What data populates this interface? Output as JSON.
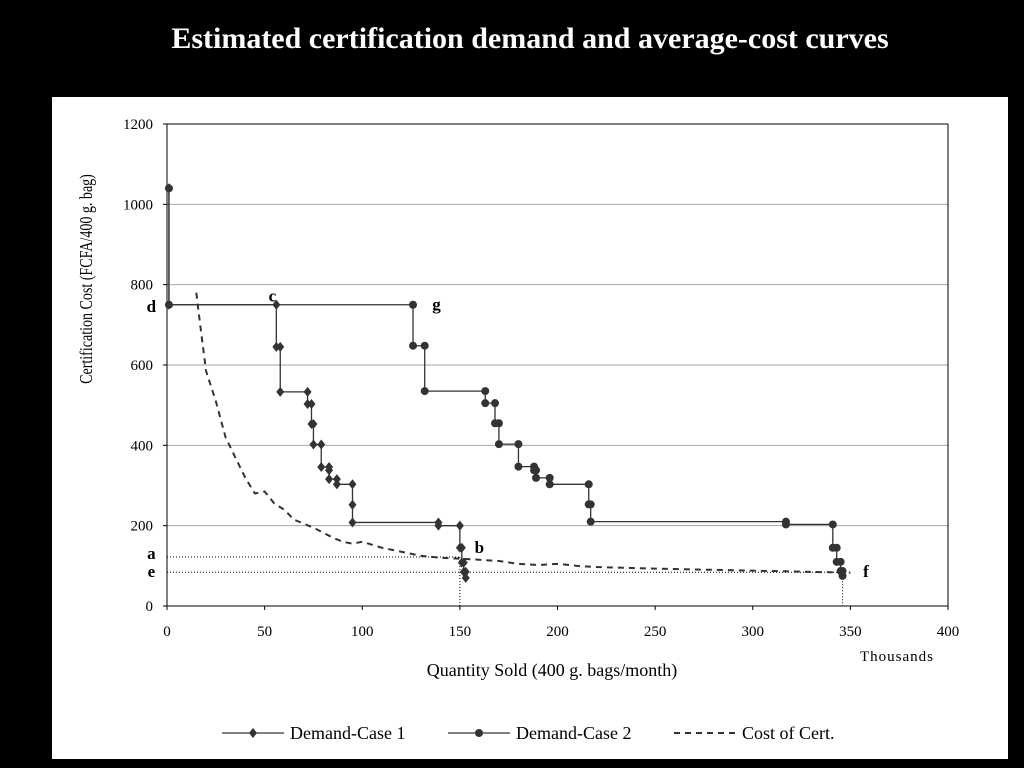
{
  "slide": {
    "title": "Estimated certification demand and average-cost curves"
  },
  "chart_data": {
    "type": "line",
    "ylabel": "Certification Cost (FCFA/400 g. bag)",
    "xlabel": "Quantity Sold (400 g. bags/month)",
    "x_unit_label": "Thousands",
    "xlim": [
      0,
      400
    ],
    "ylim": [
      0,
      1200
    ],
    "x_ticks": [
      0,
      50,
      100,
      150,
      200,
      250,
      300,
      350,
      400
    ],
    "y_ticks": [
      0,
      200,
      400,
      600,
      800,
      1000,
      1200
    ],
    "grid": "horizontal",
    "legend_position": "bottom",
    "colors": {
      "series": "#333333",
      "grid": "#a6a6a6",
      "axis": "#000000"
    },
    "series": [
      {
        "name": "Demand-Case 1",
        "marker": "diamond",
        "style": "step",
        "points": [
          [
            1,
            1040
          ],
          [
            1,
            750
          ],
          [
            56,
            750
          ],
          [
            56,
            645
          ],
          [
            58,
            645
          ],
          [
            58,
            533
          ],
          [
            72,
            533
          ],
          [
            72,
            503
          ],
          [
            74,
            503
          ],
          [
            74,
            453
          ],
          [
            75,
            453
          ],
          [
            75,
            402
          ],
          [
            79,
            402
          ],
          [
            79,
            346
          ],
          [
            83,
            346
          ],
          [
            83,
            338
          ],
          [
            83,
            316
          ],
          [
            87,
            316
          ],
          [
            87,
            303
          ],
          [
            95,
            303
          ],
          [
            95,
            252
          ],
          [
            95,
            208
          ],
          [
            139,
            208
          ],
          [
            139,
            200
          ],
          [
            150,
            200
          ],
          [
            150,
            145
          ],
          [
            151,
            145
          ],
          [
            151,
            108
          ],
          [
            152,
            108
          ],
          [
            152,
            85
          ],
          [
            153,
            85
          ],
          [
            153,
            70
          ]
        ]
      },
      {
        "name": "Demand-Case 2",
        "marker": "circle",
        "style": "step",
        "points": [
          [
            1,
            1040
          ],
          [
            1,
            750
          ],
          [
            126,
            750
          ],
          [
            126,
            648
          ],
          [
            132,
            648
          ],
          [
            132,
            535
          ],
          [
            163,
            535
          ],
          [
            163,
            505
          ],
          [
            168,
            505
          ],
          [
            168,
            455
          ],
          [
            170,
            455
          ],
          [
            170,
            403
          ],
          [
            180,
            403
          ],
          [
            180,
            347
          ],
          [
            188,
            347
          ],
          [
            188,
            338
          ],
          [
            189,
            338
          ],
          [
            189,
            319
          ],
          [
            196,
            319
          ],
          [
            196,
            303
          ],
          [
            216,
            303
          ],
          [
            216,
            253
          ],
          [
            217,
            253
          ],
          [
            217,
            210
          ],
          [
            317,
            210
          ],
          [
            317,
            203
          ],
          [
            341,
            203
          ],
          [
            341,
            145
          ],
          [
            343,
            145
          ],
          [
            343,
            110
          ],
          [
            345,
            110
          ],
          [
            345,
            87
          ],
          [
            346,
            87
          ],
          [
            346,
            75
          ]
        ]
      },
      {
        "name": "Cost of Cert.",
        "marker": "none",
        "style": "dashed",
        "points": [
          [
            15,
            780
          ],
          [
            17,
            700
          ],
          [
            20,
            585
          ],
          [
            25,
            510
          ],
          [
            30,
            420
          ],
          [
            35,
            370
          ],
          [
            40,
            320
          ],
          [
            45,
            280
          ],
          [
            50,
            285
          ],
          [
            55,
            255
          ],
          [
            60,
            240
          ],
          [
            65,
            215
          ],
          [
            75,
            195
          ],
          [
            85,
            170
          ],
          [
            90,
            160
          ],
          [
            95,
            155
          ],
          [
            100,
            160
          ],
          [
            110,
            145
          ],
          [
            120,
            135
          ],
          [
            130,
            125
          ],
          [
            140,
            120
          ],
          [
            150,
            118
          ],
          [
            160,
            115
          ],
          [
            170,
            112
          ],
          [
            180,
            105
          ],
          [
            190,
            102
          ],
          [
            200,
            105
          ],
          [
            210,
            100
          ],
          [
            220,
            97
          ],
          [
            235,
            95
          ],
          [
            250,
            93
          ],
          [
            260,
            92
          ],
          [
            280,
            90
          ],
          [
            300,
            88
          ],
          [
            320,
            86
          ],
          [
            340,
            84
          ],
          [
            350,
            83
          ]
        ]
      }
    ],
    "annotations": [
      {
        "text": "c",
        "x": 54,
        "y": 770
      },
      {
        "text": "d",
        "x": -8,
        "y": 745
      },
      {
        "text": "g",
        "x": 138,
        "y": 750
      },
      {
        "text": "a",
        "x": -8,
        "y": 130
      },
      {
        "text": "e",
        "x": -8,
        "y": 85
      },
      {
        "text": "b",
        "x": 160,
        "y": 145
      },
      {
        "text": "f",
        "x": 358,
        "y": 85
      }
    ],
    "reference_lines": [
      {
        "kind": "horizontal",
        "y": 122,
        "x_to": 150
      },
      {
        "kind": "horizontal",
        "y": 84,
        "x_to": 346
      },
      {
        "kind": "vertical",
        "x": 150,
        "y_to": 122
      },
      {
        "kind": "vertical",
        "x": 346,
        "y_to": 84
      }
    ]
  }
}
